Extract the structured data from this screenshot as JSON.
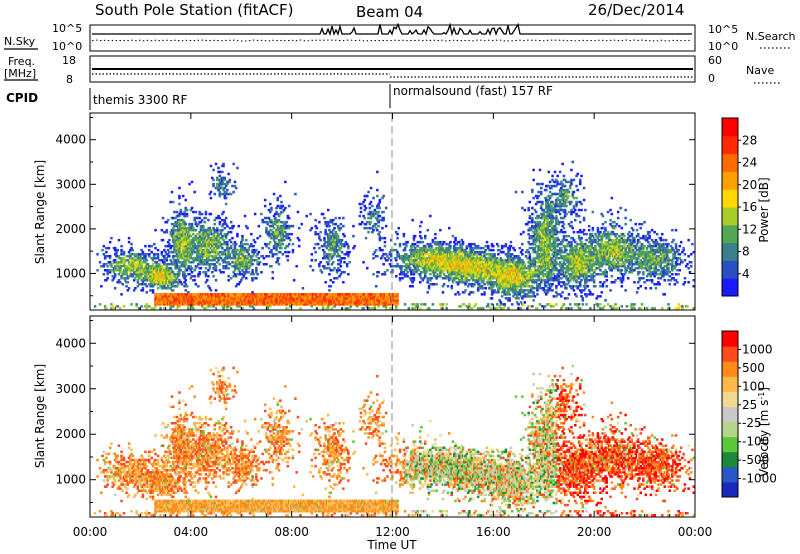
{
  "header": {
    "title": "South Pole Station (fitACF)",
    "beam": "Beam 04",
    "date": "26/Dec/2014"
  },
  "noise_panel": {
    "left_label": "N.Sky",
    "left_ticks": [
      "10^5",
      "10^0"
    ],
    "right_label": "N.Search",
    "right_ticks": [
      "10^5",
      "10^0"
    ]
  },
  "freq_panel": {
    "left_label_line1": "Freq.",
    "left_label_line2": "[MHz]",
    "left_ticks": [
      "18",
      "8"
    ],
    "right_label": "Nave",
    "right_ticks": [
      "60",
      "0"
    ]
  },
  "cpid_panel": {
    "label": "CPID",
    "mode1": "themis 3300 RF",
    "mode2": "normalsound (fast) 157 RF"
  },
  "colors": {
    "power_scale": [
      "#1a1aff",
      "#2a4fc4",
      "#3a7f8a",
      "#52a852",
      "#a8cc2a",
      "#ffd800",
      "#ffa000",
      "#ff6a00",
      "#ff2a00",
      "#ff0000"
    ],
    "velocity_scale": [
      "#1a2ab8",
      "#2a56c8",
      "#1a8a3a",
      "#5ac83a",
      "#b4d48c",
      "#c8c8c8",
      "#f0d890",
      "#ffb84a",
      "#ff8a1a",
      "#ff4a1a",
      "#ff0000"
    ]
  },
  "chart_data": [
    {
      "type": "heatmap",
      "name": "power",
      "ylabel": "Slant Range [km]",
      "yticks": [
        "1000",
        "2000",
        "3000",
        "4000"
      ],
      "ylim": [
        180,
        4600
      ],
      "xlim": [
        0,
        24
      ],
      "colorbar_label": "Power [dB]",
      "colorbar_ticks": [
        "4",
        "8",
        "12",
        "16",
        "20",
        "24",
        "28"
      ],
      "colorbar_range": [
        0,
        30
      ]
    },
    {
      "type": "heatmap",
      "name": "velocity",
      "xlabel": "Time UT",
      "ylabel": "Slant Range [km]",
      "yticks": [
        "1000",
        "2000",
        "3000",
        "4000"
      ],
      "xticks": [
        "00:00",
        "04:00",
        "08:00",
        "12:00",
        "16:00",
        "20:00",
        "00:00"
      ],
      "ylim": [
        180,
        4600
      ],
      "xlim": [
        0,
        24
      ],
      "colorbar_label": "Velocity [m s-1]",
      "colorbar_ticks": [
        "1000",
        "500",
        "100",
        "25",
        "-25",
        "-100",
        "-500",
        "-1000"
      ]
    }
  ]
}
